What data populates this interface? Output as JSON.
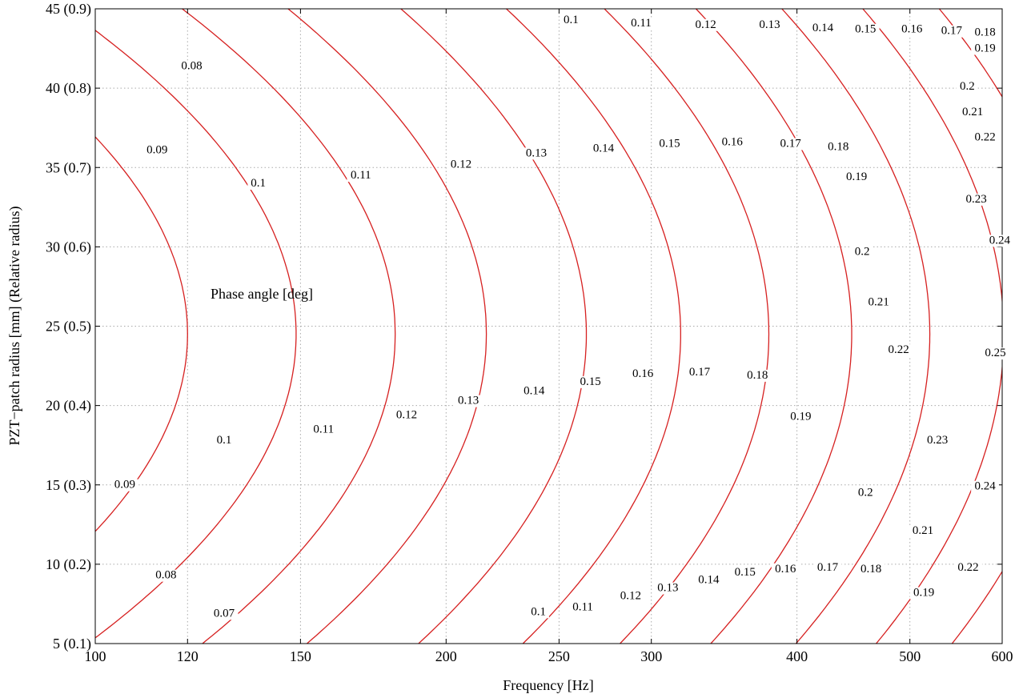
{
  "chart_data": {
    "type": "contour",
    "xlabel": "Frequency [Hz]",
    "ylabel": "PZT−patch radius [mm] (Relative radius)",
    "x_scale": "log",
    "xlim": [
      100,
      600
    ],
    "ylim": [
      5,
      45
    ],
    "x_ticks": [
      100,
      120,
      150,
      200,
      250,
      300,
      400,
      500,
      600
    ],
    "x_tick_labels": [
      "100",
      "120",
      "150",
      "200",
      "250",
      "300",
      "400",
      "500",
      "600"
    ],
    "y_ticks": [
      5,
      10,
      15,
      20,
      25,
      30,
      35,
      40,
      45
    ],
    "y_tick_labels": [
      "5 (0.1)",
      "10 (0.2)",
      "15 (0.3)",
      "20 (0.4)",
      "25 (0.5)",
      "30 (0.6)",
      "35 (0.7)",
      "40 (0.8)",
      "45 (0.9)"
    ],
    "grid": true,
    "line_color": "#d62020",
    "annotation": "Phase angle [deg]",
    "levels": [
      "0.07",
      "0.08",
      "0.09",
      "0.1",
      "0.11",
      "0.12",
      "0.13",
      "0.14",
      "0.15",
      "0.16",
      "0.17",
      "0.18",
      "0.19",
      "0.2",
      "0.21",
      "0.22",
      "0.23",
      "0.24",
      "0.25"
    ],
    "contour_labels": [
      {
        "text": "0.07",
        "x": 129,
        "y": 6.7
      },
      {
        "text": "0.08",
        "x": 115,
        "y": 9.1
      },
      {
        "text": "0.09",
        "x": 106,
        "y": 14.8
      },
      {
        "text": "0.1",
        "x": 129,
        "y": 17.6
      },
      {
        "text": "0.11",
        "x": 157,
        "y": 18.3
      },
      {
        "text": "0.12",
        "x": 185,
        "y": 19.2
      },
      {
        "text": "0.13",
        "x": 209,
        "y": 20.1
      },
      {
        "text": "0.14",
        "x": 238,
        "y": 20.7
      },
      {
        "text": "0.15",
        "x": 266,
        "y": 21.3
      },
      {
        "text": "0.16",
        "x": 295,
        "y": 21.8
      },
      {
        "text": "0.17",
        "x": 330,
        "y": 21.9
      },
      {
        "text": "0.18",
        "x": 370,
        "y": 21.7
      },
      {
        "text": "0.19",
        "x": 403,
        "y": 19.1
      },
      {
        "text": "0.2",
        "x": 458,
        "y": 14.3
      },
      {
        "text": "0.21",
        "x": 513,
        "y": 11.9
      },
      {
        "text": "0.22",
        "x": 561,
        "y": 9.6
      },
      {
        "text": "0.23",
        "x": 528,
        "y": 17.6
      },
      {
        "text": "0.24",
        "x": 580,
        "y": 14.7
      },
      {
        "text": "0.25",
        "x": 592,
        "y": 23.1
      },
      {
        "text": "0.08",
        "x": 121,
        "y": 41.2
      },
      {
        "text": "0.09",
        "x": 113,
        "y": 35.9
      },
      {
        "text": "0.1",
        "x": 138,
        "y": 33.8
      },
      {
        "text": "0.11",
        "x": 169,
        "y": 34.3
      },
      {
        "text": "0.12",
        "x": 206,
        "y": 35.0
      },
      {
        "text": "0.13",
        "x": 239,
        "y": 35.7
      },
      {
        "text": "0.14",
        "x": 273,
        "y": 36.0
      },
      {
        "text": "0.15",
        "x": 311,
        "y": 36.3
      },
      {
        "text": "0.16",
        "x": 352,
        "y": 36.4
      },
      {
        "text": "0.17",
        "x": 395,
        "y": 36.3
      },
      {
        "text": "0.18",
        "x": 434,
        "y": 36.1
      },
      {
        "text": "0.19",
        "x": 450,
        "y": 34.2
      },
      {
        "text": "0.2",
        "x": 455,
        "y": 29.5
      },
      {
        "text": "0.21",
        "x": 470,
        "y": 26.3
      },
      {
        "text": "0.22",
        "x": 489,
        "y": 23.3
      },
      {
        "text": "0.23",
        "x": 570,
        "y": 32.8
      },
      {
        "text": "0.24",
        "x": 597,
        "y": 30.2
      },
      {
        "text": "0.22",
        "x": 580,
        "y": 36.7
      },
      {
        "text": "0.21",
        "x": 566,
        "y": 38.3
      },
      {
        "text": "0.2",
        "x": 560,
        "y": 39.9
      },
      {
        "text": "0.19",
        "x": 580,
        "y": 42.3
      },
      {
        "text": "0.18",
        "x": 580,
        "y": 43.3
      },
      {
        "text": "0.17",
        "x": 543,
        "y": 43.4
      },
      {
        "text": "0.16",
        "x": 502,
        "y": 43.5
      },
      {
        "text": "0.15",
        "x": 458,
        "y": 43.5
      },
      {
        "text": "0.14",
        "x": 421,
        "y": 43.6
      },
      {
        "text": "0.13",
        "x": 379,
        "y": 43.8
      },
      {
        "text": "0.12",
        "x": 334,
        "y": 43.8
      },
      {
        "text": "0.11",
        "x": 294,
        "y": 43.9
      },
      {
        "text": "0.1",
        "x": 256,
        "y": 44.1
      },
      {
        "text": "0.1",
        "x": 240,
        "y": 6.8
      },
      {
        "text": "0.11",
        "x": 262,
        "y": 7.1
      },
      {
        "text": "0.12",
        "x": 288,
        "y": 7.8
      },
      {
        "text": "0.13",
        "x": 310,
        "y": 8.3
      },
      {
        "text": "0.14",
        "x": 336,
        "y": 8.8
      },
      {
        "text": "0.15",
        "x": 361,
        "y": 9.3
      },
      {
        "text": "0.16",
        "x": 391,
        "y": 9.5
      },
      {
        "text": "0.17",
        "x": 425,
        "y": 9.6
      },
      {
        "text": "0.18",
        "x": 463,
        "y": 9.5
      },
      {
        "text": "0.19",
        "x": 514,
        "y": 8.0
      }
    ]
  }
}
